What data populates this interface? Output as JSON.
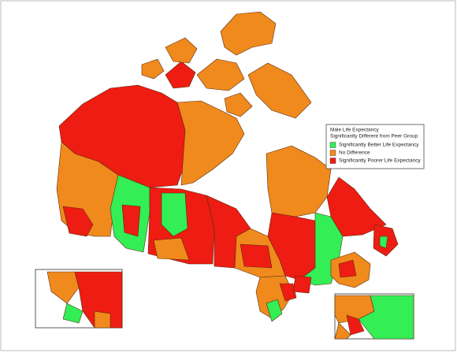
{
  "legend": {
    "title_lines": [
      "Male Life Expectancy",
      "Significantly Different from Peer Group"
    ],
    "items": [
      {
        "label": "Significantly Better Life Expectancy",
        "color": "#33ee55"
      },
      {
        "label": "No Difference",
        "color": "#f08a1c"
      },
      {
        "label": "Significantly Poorer Life Expectancy",
        "color": "#ee1c12"
      }
    ]
  }
}
